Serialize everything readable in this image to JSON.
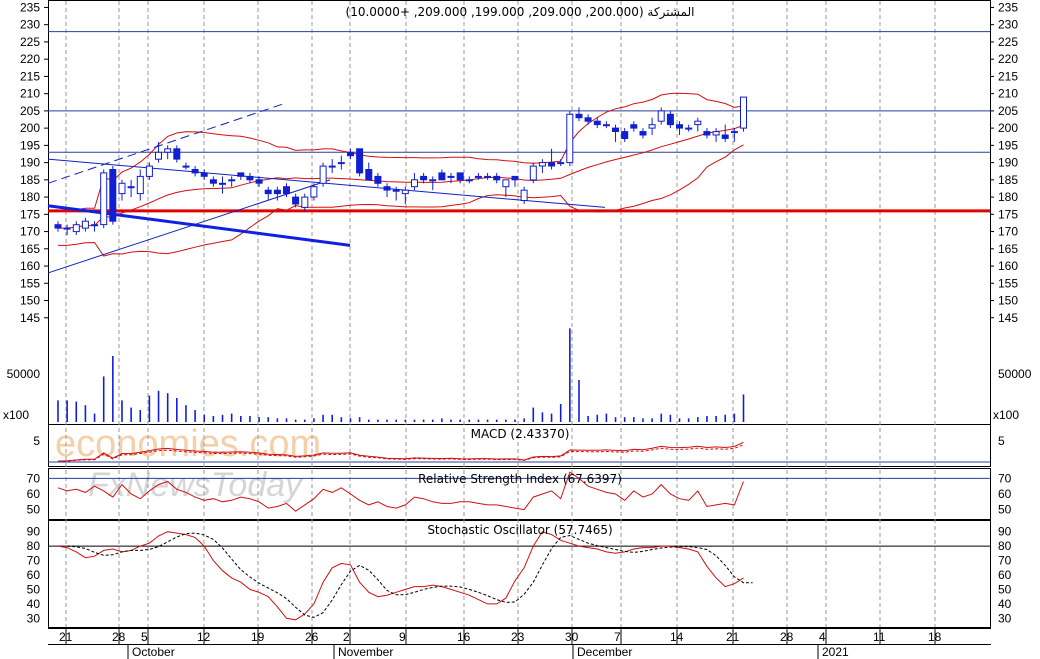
{
  "chart_data": {
    "type": "candlestick",
    "title": "المشتركة (200.000, 209.000, 199.000, 209.000, +10.0000)",
    "price_axis": {
      "range": [
        140,
        236
      ],
      "ticks": [
        145,
        150,
        155,
        160,
        165,
        170,
        175,
        180,
        185,
        190,
        195,
        200,
        205,
        210,
        215,
        220,
        225,
        230,
        235
      ]
    },
    "horizontal_lines": [
      228,
      205,
      193
    ],
    "support_line": 176,
    "date_ticks": [
      "21",
      "28",
      "5",
      "12",
      "19",
      "26",
      "2",
      "9",
      "16",
      "23",
      "30",
      "7",
      "14",
      "21",
      "28",
      "4",
      "11",
      "18"
    ],
    "month_labels": [
      "October",
      "November",
      "December",
      "2021"
    ],
    "candles": [
      {
        "o": 172,
        "h": 173,
        "l": 170,
        "c": 171
      },
      {
        "o": 171,
        "h": 172,
        "l": 169,
        "c": 171
      },
      {
        "o": 170,
        "h": 173,
        "l": 169,
        "c": 172
      },
      {
        "o": 171,
        "h": 174,
        "l": 170,
        "c": 173
      },
      {
        "o": 172,
        "h": 173,
        "l": 170,
        "c": 172
      },
      {
        "o": 172,
        "h": 188,
        "l": 171,
        "c": 187
      },
      {
        "o": 188,
        "h": 189,
        "l": 172,
        "c": 173
      },
      {
        "o": 181,
        "h": 185,
        "l": 179,
        "c": 184
      },
      {
        "o": 183,
        "h": 185,
        "l": 180,
        "c": 183
      },
      {
        "o": 181,
        "h": 188,
        "l": 179,
        "c": 186
      },
      {
        "o": 186,
        "h": 190,
        "l": 185,
        "c": 189
      },
      {
        "o": 191,
        "h": 196,
        "l": 190,
        "c": 193
      },
      {
        "o": 193,
        "h": 195,
        "l": 191,
        "c": 194
      },
      {
        "o": 194,
        "h": 195,
        "l": 190,
        "c": 191
      },
      {
        "o": 189,
        "h": 190,
        "l": 188,
        "c": 189
      },
      {
        "o": 188,
        "h": 189,
        "l": 186,
        "c": 187
      },
      {
        "o": 187,
        "h": 188,
        "l": 185,
        "c": 186
      },
      {
        "o": 185,
        "h": 186,
        "l": 183,
        "c": 184
      },
      {
        "o": 184,
        "h": 186,
        "l": 181,
        "c": 184
      },
      {
        "o": 185,
        "h": 186,
        "l": 183,
        "c": 185
      },
      {
        "o": 187,
        "h": 187,
        "l": 185,
        "c": 186
      },
      {
        "o": 186,
        "h": 187,
        "l": 184,
        "c": 185
      },
      {
        "o": 185,
        "h": 186,
        "l": 183,
        "c": 184
      },
      {
        "o": 182,
        "h": 183,
        "l": 179,
        "c": 181
      },
      {
        "o": 182,
        "h": 183,
        "l": 179,
        "c": 181
      },
      {
        "o": 183,
        "h": 184,
        "l": 180,
        "c": 181
      },
      {
        "o": 180,
        "h": 181,
        "l": 177,
        "c": 178
      },
      {
        "o": 177,
        "h": 181,
        "l": 176,
        "c": 180
      },
      {
        "o": 180,
        "h": 184,
        "l": 179,
        "c": 183
      },
      {
        "o": 184,
        "h": 190,
        "l": 183,
        "c": 189
      },
      {
        "o": 189,
        "h": 191,
        "l": 187,
        "c": 189
      },
      {
        "o": 190,
        "h": 192,
        "l": 188,
        "c": 190
      },
      {
        "o": 193,
        "h": 194,
        "l": 191,
        "c": 192
      },
      {
        "o": 194,
        "h": 194,
        "l": 186,
        "c": 187
      },
      {
        "o": 188,
        "h": 190,
        "l": 185,
        "c": 185
      },
      {
        "o": 186,
        "h": 187,
        "l": 183,
        "c": 184
      },
      {
        "o": 183,
        "h": 184,
        "l": 180,
        "c": 182
      },
      {
        "o": 182,
        "h": 183,
        "l": 179,
        "c": 182
      },
      {
        "o": 181,
        "h": 183,
        "l": 178,
        "c": 182
      },
      {
        "o": 183,
        "h": 187,
        "l": 182,
        "c": 185
      },
      {
        "o": 186,
        "h": 187,
        "l": 184,
        "c": 185
      },
      {
        "o": 185,
        "h": 186,
        "l": 182,
        "c": 185
      },
      {
        "o": 187,
        "h": 188,
        "l": 185,
        "c": 185
      },
      {
        "o": 186,
        "h": 187,
        "l": 184,
        "c": 186
      },
      {
        "o": 187,
        "h": 187,
        "l": 184,
        "c": 185
      },
      {
        "o": 185,
        "h": 186,
        "l": 184,
        "c": 185
      },
      {
        "o": 186,
        "h": 187,
        "l": 185,
        "c": 186
      },
      {
        "o": 186,
        "h": 187,
        "l": 185,
        "c": 186
      },
      {
        "o": 186,
        "h": 187,
        "l": 184,
        "c": 185
      },
      {
        "o": 183,
        "h": 185,
        "l": 180,
        "c": 185
      },
      {
        "o": 186,
        "h": 186,
        "l": 183,
        "c": 185
      },
      {
        "o": 179,
        "h": 183,
        "l": 178,
        "c": 182
      },
      {
        "o": 185,
        "h": 190,
        "l": 184,
        "c": 189
      },
      {
        "o": 189,
        "h": 191,
        "l": 187,
        "c": 190
      },
      {
        "o": 190,
        "h": 194,
        "l": 188,
        "c": 189
      },
      {
        "o": 190,
        "h": 191,
        "l": 189,
        "c": 190
      },
      {
        "o": 190,
        "h": 205,
        "l": 189,
        "c": 204
      },
      {
        "o": 204,
        "h": 206,
        "l": 202,
        "c": 203
      },
      {
        "o": 203,
        "h": 204,
        "l": 201,
        "c": 202
      },
      {
        "o": 202,
        "h": 203,
        "l": 200,
        "c": 201
      },
      {
        "o": 201,
        "h": 202,
        "l": 200,
        "c": 201
      },
      {
        "o": 200,
        "h": 201,
        "l": 196,
        "c": 199
      },
      {
        "o": 199,
        "h": 200,
        "l": 196,
        "c": 197
      },
      {
        "o": 201,
        "h": 202,
        "l": 199,
        "c": 200
      },
      {
        "o": 199,
        "h": 200,
        "l": 197,
        "c": 198
      },
      {
        "o": 200,
        "h": 203,
        "l": 198,
        "c": 201
      },
      {
        "o": 202,
        "h": 206,
        "l": 201,
        "c": 205
      },
      {
        "o": 204,
        "h": 205,
        "l": 200,
        "c": 201
      },
      {
        "o": 201,
        "h": 202,
        "l": 198,
        "c": 200
      },
      {
        "o": 200,
        "h": 201,
        "l": 199,
        "c": 200
      },
      {
        "o": 201,
        "h": 203,
        "l": 199,
        "c": 202
      },
      {
        "o": 199,
        "h": 200,
        "l": 197,
        "c": 198
      },
      {
        "o": 198,
        "h": 200,
        "l": 196,
        "c": 199
      },
      {
        "o": 198,
        "h": 201,
        "l": 196,
        "c": 197
      },
      {
        "o": 199,
        "h": 200,
        "l": 196,
        "c": 199
      },
      {
        "o": 200,
        "h": 209,
        "l": 199,
        "c": 209
      }
    ],
    "volume": {
      "tick": 50000,
      "label": "x100",
      "values": [
        18,
        18,
        17,
        14,
        7,
        38,
        55,
        18,
        12,
        10,
        22,
        26,
        24,
        20,
        14,
        10,
        6,
        5,
        6,
        7,
        5,
        5,
        4,
        4,
        3,
        3,
        2,
        2,
        3,
        6,
        6,
        4,
        3,
        4,
        2,
        2,
        2,
        2,
        2,
        2,
        2,
        2,
        3,
        2,
        2,
        2,
        2,
        2,
        2,
        2,
        2,
        3,
        12,
        8,
        7,
        15,
        78,
        35,
        5,
        6,
        7,
        4,
        4,
        4,
        3,
        3,
        7,
        6,
        3,
        3,
        4,
        5,
        5,
        6,
        7,
        23
      ]
    },
    "macd": {
      "label": "MACD (2.43370)",
      "ticks": [
        5
      ]
    },
    "rsi": {
      "label": "Relative Strength Index (67.6397)",
      "ticks": [
        70,
        60,
        50
      ],
      "range": [
        44,
        76
      ],
      "values": [
        64,
        62,
        63,
        61,
        65,
        62,
        58,
        66,
        60,
        57,
        62,
        66,
        68,
        63,
        61,
        58,
        56,
        57,
        55,
        56,
        58,
        57,
        55,
        51,
        52,
        54,
        49,
        53,
        57,
        63,
        61,
        64,
        60,
        56,
        53,
        55,
        52,
        51,
        53,
        58,
        57,
        55,
        54,
        54,
        55,
        55,
        54,
        53,
        53,
        52,
        51,
        50,
        58,
        60,
        62,
        57,
        74,
        70,
        65,
        63,
        61,
        60,
        56,
        62,
        58,
        60,
        66,
        60,
        57,
        56,
        62,
        52,
        53,
        54,
        53,
        68
      ]
    },
    "stochastic": {
      "label": "Stochastic Oscillator (57.7465)",
      "ticks": [
        90,
        80,
        70,
        60,
        50,
        40,
        30
      ],
      "range": [
        24,
        96
      ],
      "k": [
        80,
        79,
        76,
        72,
        73,
        77,
        78,
        76,
        77,
        80,
        82,
        87,
        90,
        89,
        88,
        86,
        80,
        70,
        63,
        58,
        55,
        50,
        48,
        45,
        38,
        30,
        29,
        33,
        40,
        55,
        65,
        68,
        67,
        55,
        48,
        45,
        46,
        48,
        50,
        52,
        52,
        53,
        52,
        50,
        48,
        46,
        43,
        40,
        40,
        44,
        56,
        65,
        80,
        90,
        88,
        84,
        82,
        80,
        79,
        78,
        76,
        75,
        76,
        78,
        79,
        79,
        80,
        80,
        79,
        78,
        76,
        66,
        58,
        52,
        54,
        58
      ]
    }
  }
}
